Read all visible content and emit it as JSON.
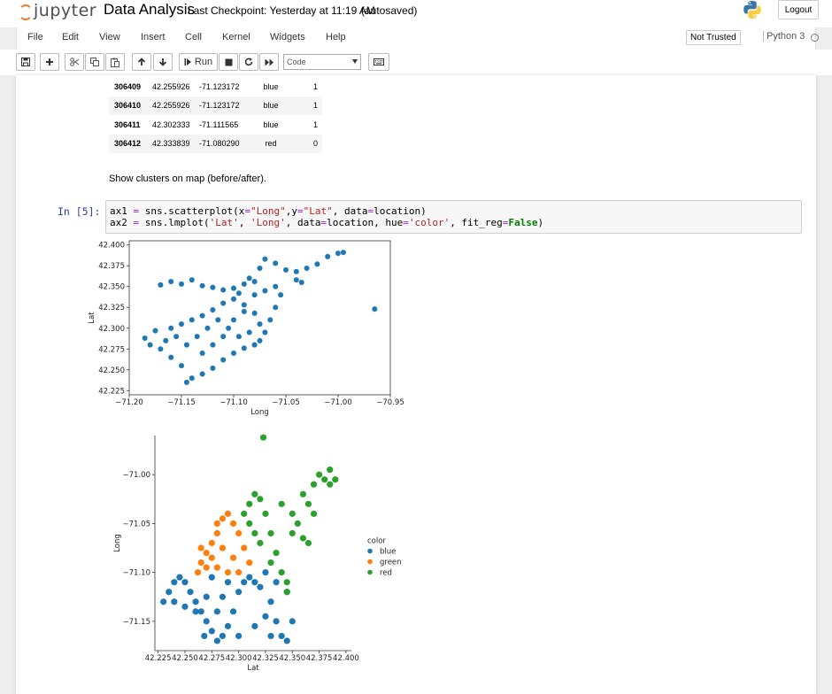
{
  "header": {
    "logo_text": "jupyter",
    "notebook_name": "Data Analysis",
    "checkpoint": "Last Checkpoint: Yesterday at 11:19 AM",
    "autosave": "(autosaved)",
    "logout_label": "Logout"
  },
  "menubar": {
    "items": [
      "File",
      "Edit",
      "View",
      "Insert",
      "Cell",
      "Kernel",
      "Widgets",
      "Help"
    ],
    "trust_label": "Not Trusted",
    "kernel_name": "Python 3"
  },
  "toolbar": {
    "run_label": "Run",
    "cell_type": "Code"
  },
  "table": {
    "rows": [
      {
        "index": "306409",
        "lat": "42.255926",
        "long": "-71.123172",
        "color": "blue",
        "label": "1"
      },
      {
        "index": "306410",
        "lat": "42.255926",
        "long": "-71.123172",
        "color": "blue",
        "label": "1"
      },
      {
        "index": "306411",
        "lat": "42.302333",
        "long": "-71.111565",
        "color": "blue",
        "label": "1"
      },
      {
        "index": "306412",
        "lat": "42.333839",
        "long": "-71.080290",
        "color": "red",
        "label": "0"
      }
    ]
  },
  "markdown_text": "Show clusters on map (before/after).",
  "code_cell": {
    "prompt": "In [5]:",
    "line1": "ax1 = sns.scatterplot(x=\"Long\",y=\"Lat\", data=location)",
    "line2": "ax2 = sns.lmplot('Lat', 'Long', data=location, hue='color', fit_reg=False)"
  },
  "chart_data": [
    {
      "type": "scatter",
      "title": "",
      "xlabel": "Long",
      "ylabel": "Lat",
      "xlim": [
        -71.2,
        -70.95
      ],
      "ylim": [
        42.22,
        42.405
      ],
      "xticks": [
        "−71.20",
        "−71.15",
        "−71.10",
        "−71.05",
        "−71.00",
        "−70.95"
      ],
      "xtick_values": [
        -71.2,
        -71.15,
        -71.1,
        -71.05,
        -71.0,
        -70.95
      ],
      "yticks": [
        "42.400",
        "42.375",
        "42.350",
        "42.325",
        "42.300",
        "42.275",
        "42.250",
        "42.225"
      ],
      "ytick_values": [
        42.4,
        42.375,
        42.35,
        42.325,
        42.3,
        42.275,
        42.25,
        42.225
      ],
      "series": [
        {
          "color": "#1f77b4",
          "points": [
            [
              -71.17,
              42.352
            ],
            [
              -71.16,
              42.356
            ],
            [
              -71.15,
              42.353
            ],
            [
              -71.14,
              42.358
            ],
            [
              -71.13,
              42.351
            ],
            [
              -71.12,
              42.349
            ],
            [
              -71.11,
              42.346
            ],
            [
              -71.1,
              42.348
            ],
            [
              -71.09,
              42.353
            ],
            [
              -71.08,
              42.356
            ],
            [
              -71.075,
              42.372
            ],
            [
              -71.07,
              42.383
            ],
            [
              -71.06,
              42.378
            ],
            [
              -71.05,
              42.37
            ],
            [
              -71.04,
              42.368
            ],
            [
              -71.03,
              42.372
            ],
            [
              -71.02,
              42.377
            ],
            [
              -71.01,
              42.386
            ],
            [
              -71.0,
              42.39
            ],
            [
              -70.995,
              42.391
            ],
            [
              -71.04,
              42.358
            ],
            [
              -71.035,
              42.355
            ],
            [
              -71.055,
              42.34
            ],
            [
              -71.06,
              42.325
            ],
            [
              -71.065,
              42.31
            ],
            [
              -71.07,
              42.295
            ],
            [
              -71.075,
              42.285
            ],
            [
              -71.08,
              42.28
            ],
            [
              -71.09,
              42.276
            ],
            [
              -71.1,
              42.27
            ],
            [
              -71.11,
              42.262
            ],
            [
              -71.12,
              42.252
            ],
            [
              -71.13,
              42.245
            ],
            [
              -71.14,
              42.24
            ],
            [
              -71.145,
              42.235
            ],
            [
              -71.15,
              42.255
            ],
            [
              -71.16,
              42.265
            ],
            [
              -71.17,
              42.275
            ],
            [
              -71.18,
              42.28
            ],
            [
              -71.185,
              42.288
            ],
            [
              -71.175,
              42.297
            ],
            [
              -71.16,
              42.3
            ],
            [
              -71.15,
              42.305
            ],
            [
              -71.14,
              42.31
            ],
            [
              -71.13,
              42.315
            ],
            [
              -71.12,
              42.322
            ],
            [
              -71.11,
              42.33
            ],
            [
              -71.1,
              42.335
            ],
            [
              -71.09,
              42.328
            ],
            [
              -71.08,
              42.318
            ],
            [
              -71.075,
              42.305
            ],
            [
              -71.085,
              42.295
            ],
            [
              -71.095,
              42.29
            ],
            [
              -71.105,
              42.3
            ],
            [
              -71.115,
              42.31
            ],
            [
              -71.125,
              42.3
            ],
            [
              -71.135,
              42.29
            ],
            [
              -71.145,
              42.28
            ],
            [
              -71.155,
              42.29
            ],
            [
              -71.165,
              42.285
            ],
            [
              -71.13,
              42.27
            ],
            [
              -71.12,
              42.28
            ],
            [
              -71.11,
              42.29
            ],
            [
              -71.1,
              42.31
            ],
            [
              -71.09,
              42.32
            ],
            [
              -71.08,
              42.34
            ],
            [
              -71.07,
              42.345
            ],
            [
              -71.06,
              42.35
            ],
            [
              -71.085,
              42.36
            ],
            [
              -71.095,
              42.342
            ],
            [
              -70.965,
              42.323
            ]
          ]
        }
      ]
    },
    {
      "type": "scatter",
      "title": "",
      "xlabel": "Lat",
      "ylabel": "Long",
      "xlim": [
        42.222,
        42.405
      ],
      "ylim": [
        -71.18,
        -70.96
      ],
      "xticks": [
        "42.225",
        "42.250",
        "42.275",
        "42.300",
        "42.325",
        "42.350",
        "42.375",
        "42.400"
      ],
      "xtick_values": [
        42.225,
        42.25,
        42.275,
        42.3,
        42.325,
        42.35,
        42.375,
        42.4
      ],
      "yticks": [
        "−71.00",
        "−71.05",
        "−71.10",
        "−71.15"
      ],
      "ytick_values": [
        -71.0,
        -71.05,
        -71.1,
        -71.15
      ],
      "legend": {
        "title": "color",
        "position": "right"
      },
      "series": [
        {
          "name": "blue",
          "color": "#1f77b4",
          "points": [
            [
              42.23,
              -71.13
            ],
            [
              42.235,
              -71.12
            ],
            [
              42.24,
              -71.11
            ],
            [
              42.245,
              -71.105
            ],
            [
              42.25,
              -71.11
            ],
            [
              42.255,
              -71.12
            ],
            [
              42.26,
              -71.13
            ],
            [
              42.265,
              -71.14
            ],
            [
              42.27,
              -71.15
            ],
            [
              42.275,
              -71.16
            ],
            [
              42.28,
              -71.17
            ],
            [
              42.285,
              -71.165
            ],
            [
              42.29,
              -71.155
            ],
            [
              42.295,
              -71.14
            ],
            [
              42.3,
              -71.12
            ],
            [
              42.305,
              -71.11
            ],
            [
              42.31,
              -71.105
            ],
            [
              42.315,
              -71.11
            ],
            [
              42.32,
              -71.115
            ],
            [
              42.325,
              -71.1
            ],
            [
              42.33,
              -71.13
            ],
            [
              42.335,
              -71.15
            ],
            [
              42.34,
              -71.165
            ],
            [
              42.345,
              -71.17
            ],
            [
              42.35,
              -71.15
            ],
            [
              42.345,
              -71.12
            ],
            [
              42.335,
              -71.11
            ],
            [
              42.27,
              -71.125
            ],
            [
              42.26,
              -71.14
            ],
            [
              42.25,
              -71.135
            ],
            [
              42.28,
              -71.14
            ],
            [
              42.285,
              -71.125
            ],
            [
              42.29,
              -71.11
            ],
            [
              42.275,
              -71.105
            ],
            [
              42.24,
              -71.13
            ],
            [
              42.33,
              -71.165
            ],
            [
              42.325,
              -71.145
            ],
            [
              42.315,
              -71.155
            ],
            [
              42.268,
              -71.165
            ],
            [
              42.3,
              -71.165
            ]
          ]
        },
        {
          "name": "green",
          "color": "#ff7f0e",
          "points": [
            [
              42.262,
              -71.1
            ],
            [
              42.265,
              -71.09
            ],
            [
              42.27,
              -71.08
            ],
            [
              42.275,
              -71.07
            ],
            [
              42.28,
              -71.06
            ],
            [
              42.285,
              -71.045
            ],
            [
              42.29,
              -71.04
            ],
            [
              42.295,
              -71.05
            ],
            [
              42.3,
              -71.06
            ],
            [
              42.305,
              -71.075
            ],
            [
              42.31,
              -71.09
            ],
            [
              42.3,
              -71.1
            ],
            [
              42.29,
              -71.1
            ],
            [
              42.28,
              -71.095
            ],
            [
              42.27,
              -71.095
            ],
            [
              42.275,
              -71.085
            ],
            [
              42.285,
              -71.075
            ],
            [
              42.295,
              -71.085
            ],
            [
              42.265,
              -71.075
            ],
            [
              42.28,
              -71.05
            ]
          ]
        },
        {
          "name": "red",
          "color": "#2ca02c",
          "points": [
            [
              42.305,
              -71.04
            ],
            [
              42.31,
              -71.03
            ],
            [
              42.315,
              -71.02
            ],
            [
              42.32,
              -71.025
            ],
            [
              42.325,
              -71.04
            ],
            [
              42.33,
              -71.06
            ],
            [
              42.335,
              -71.08
            ],
            [
              42.34,
              -71.1
            ],
            [
              42.345,
              -71.11
            ],
            [
              42.35,
              -71.06
            ],
            [
              42.355,
              -71.05
            ],
            [
              42.36,
              -71.065
            ],
            [
              42.365,
              -71.07
            ],
            [
              42.37,
              -71.04
            ],
            [
              42.365,
              -71.03
            ],
            [
              42.36,
              -71.02
            ],
            [
              42.37,
              -71.01
            ],
            [
              42.375,
              -71.0
            ],
            [
              42.38,
              -71.005
            ],
            [
              42.385,
              -71.01
            ],
            [
              42.39,
              -71.005
            ],
            [
              42.385,
              -70.995
            ],
            [
              42.315,
              -71.06
            ],
            [
              42.32,
              -71.07
            ],
            [
              42.33,
              -71.09
            ],
            [
              42.31,
              -71.05
            ],
            [
              42.34,
              -71.03
            ],
            [
              42.35,
              -71.04
            ],
            [
              42.323,
              -70.962
            ],
            [
              42.345,
              -71.12
            ]
          ]
        }
      ]
    }
  ]
}
